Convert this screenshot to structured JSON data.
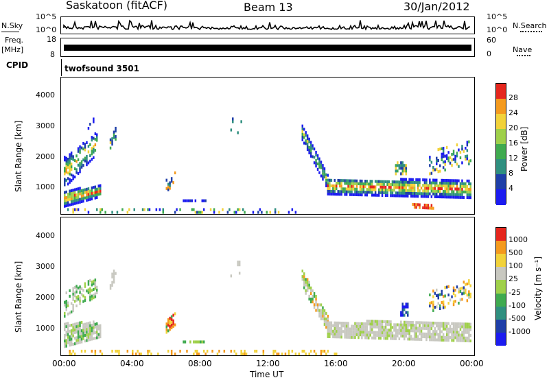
{
  "header": {
    "radar": "Saskatoon (fitACF)",
    "beam": "Beam 13",
    "date": "30/Jan/2012"
  },
  "params": {
    "nsky_label": "N.Sky",
    "nsky_ticks": [
      "10^5",
      "10^0"
    ],
    "nsearch_label": "N.Search",
    "nsearch_ticks": [
      "10^5",
      "10^0"
    ],
    "freq_label_1": "Freq.",
    "freq_label_2": "[MHz]",
    "freq_ticks": [
      "18",
      "8"
    ],
    "nave_label": "Nave",
    "nave_ticks": [
      "60",
      "0"
    ],
    "cpid_label": "CPID",
    "cpid_value": "twofsound 3501"
  },
  "colors": {
    "blue": "#1c1cf0",
    "navy": "#1f3fa8",
    "teal": "#2f8f7f",
    "green": "#3faa4f",
    "lime": "#9fd04a",
    "yellow": "#f2d23a",
    "orange": "#f49a1e",
    "red": "#e5261d",
    "grey": "#c8c8c0"
  },
  "chart_data": [
    {
      "type": "heatmap",
      "name": "power",
      "ylabel": "Slant Range [km]",
      "xlabel": "",
      "yticks": [
        "1000",
        "2000",
        "3000",
        "4000"
      ],
      "ylim": [
        180,
        4500
      ],
      "xlim_hours": [
        0,
        24
      ],
      "colorbar": {
        "label": "Power [dB]",
        "ticks": [
          "4",
          "8",
          "12",
          "16",
          "20",
          "24",
          "28"
        ],
        "range": [
          0,
          30
        ],
        "colors": [
          "#1c1cf0",
          "#1f3fa8",
          "#2f8f7f",
          "#3faa4f",
          "#9fd04a",
          "#f2d23a",
          "#f49a1e",
          "#e5261d"
        ]
      }
    },
    {
      "type": "heatmap",
      "name": "velocity",
      "ylabel": "Slant Range [km]",
      "xlabel": "Time UT",
      "yticks": [
        "1000",
        "2000",
        "3000",
        "4000"
      ],
      "xticks": [
        "00:00",
        "04:00",
        "08:00",
        "12:00",
        "16:00",
        "20:00",
        "00:00"
      ],
      "ylim": [
        180,
        4500
      ],
      "xlim_hours": [
        0,
        24
      ],
      "colorbar": {
        "label": "Velocity [m s⁻¹]",
        "ticks": [
          "1000",
          "500",
          "100",
          "25",
          "-25",
          "-100",
          "-500",
          "-1000"
        ],
        "colors": [
          "#1c1cf0",
          "#1f3fa8",
          "#2f8f7f",
          "#3faa4f",
          "#9fd04a",
          "#c8c8c0",
          "#f2d23a",
          "#f49a1e",
          "#e5261d"
        ]
      }
    }
  ]
}
